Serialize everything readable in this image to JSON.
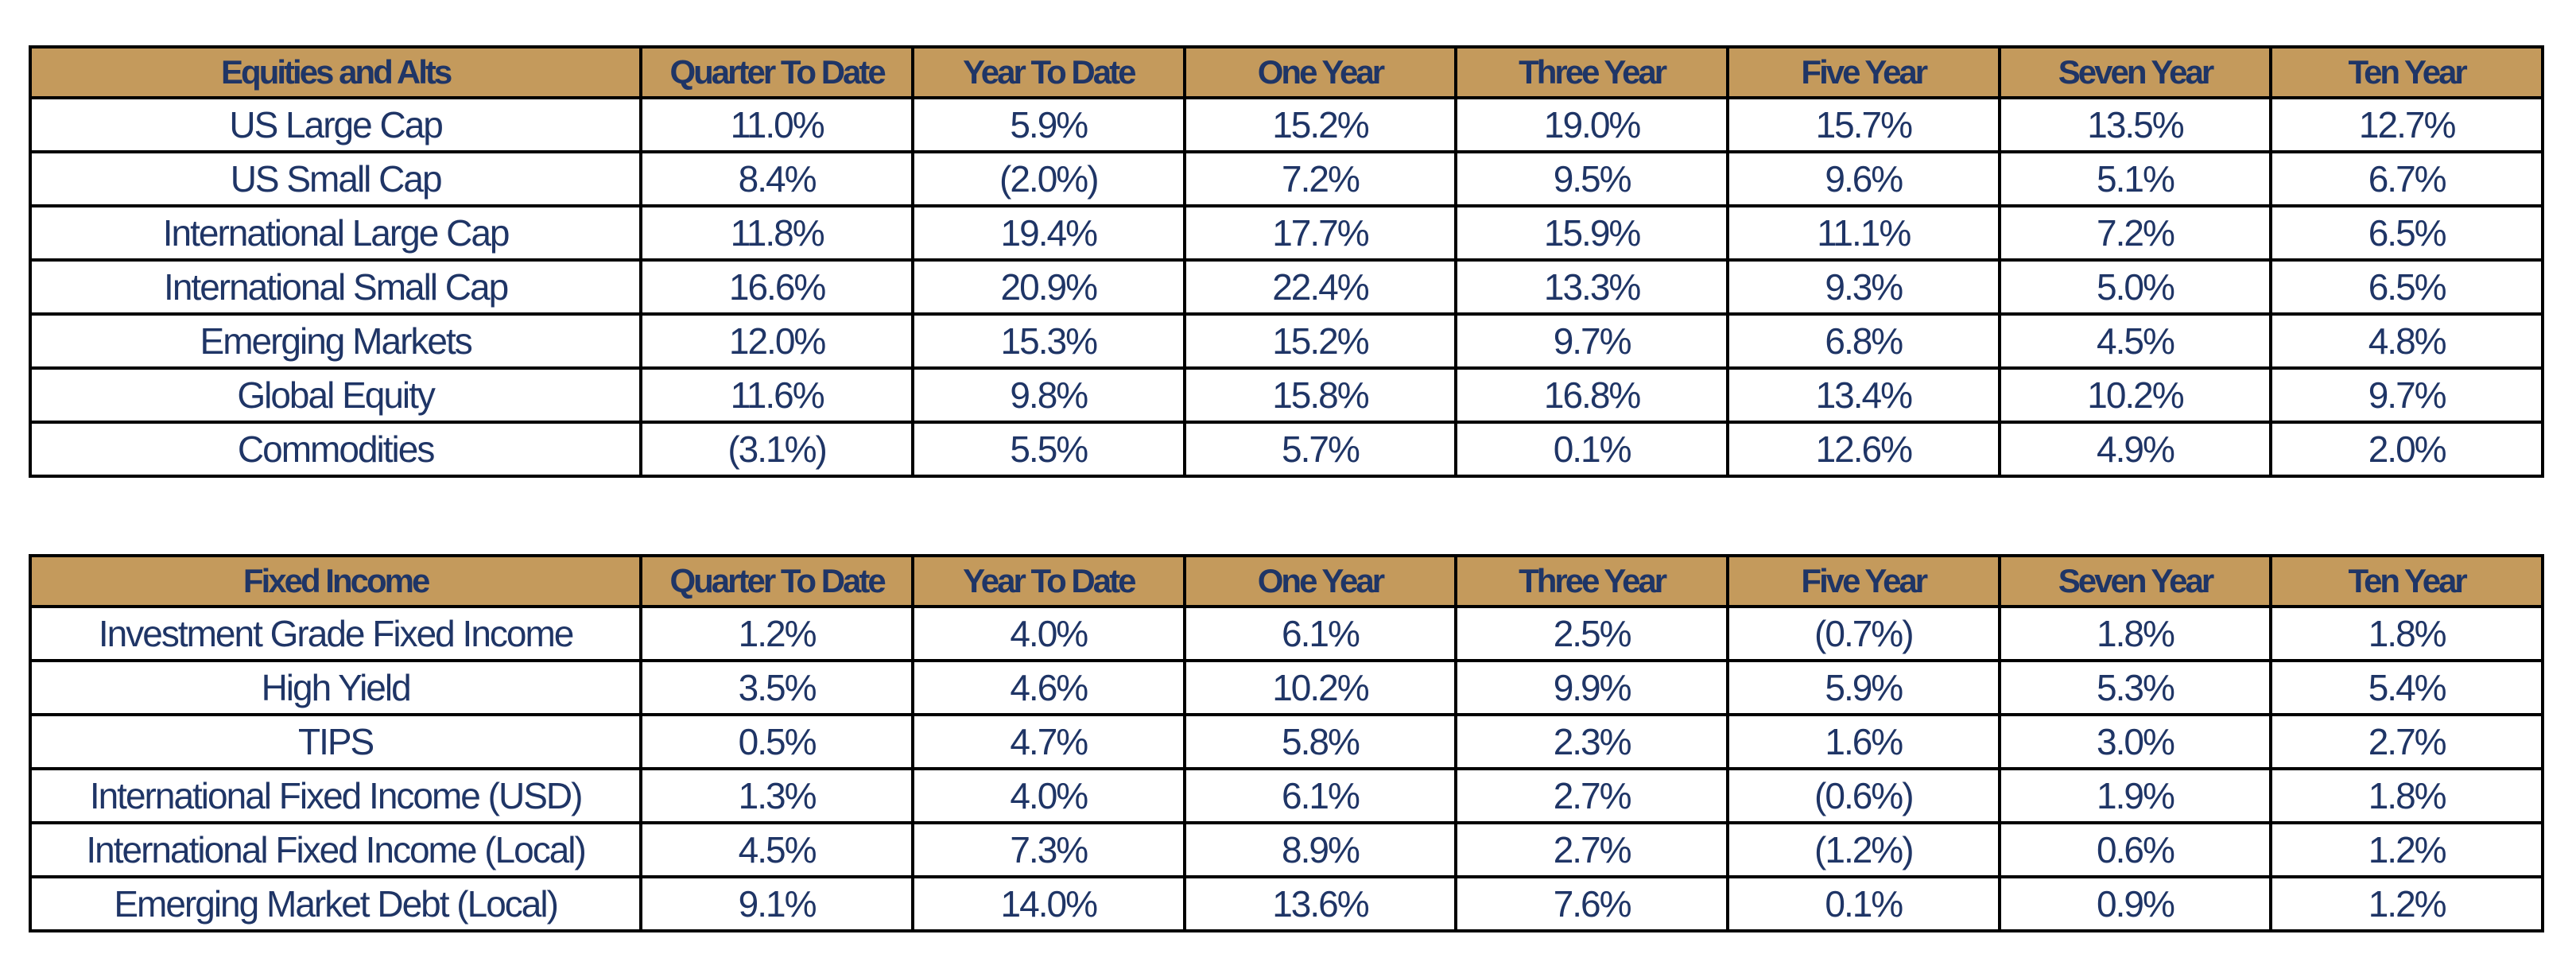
{
  "columns": [
    "Quarter To Date",
    "Year To Date",
    "One Year",
    "Three Year",
    "Five Year",
    "Seven Year",
    "Ten Year"
  ],
  "colors": {
    "header_background": "#c49a5c",
    "text": "#1f3566",
    "border": "#000000"
  },
  "equities": {
    "header": "Equities and Alts",
    "rows": [
      {
        "label": "US Large Cap",
        "values": [
          "11.0%",
          "5.9%",
          "15.2%",
          "19.0%",
          "15.7%",
          "13.5%",
          "12.7%"
        ]
      },
      {
        "label": "US Small Cap",
        "values": [
          "8.4%",
          "(2.0%)",
          "7.2%",
          "9.5%",
          "9.6%",
          "5.1%",
          "6.7%"
        ]
      },
      {
        "label": "International Large Cap",
        "values": [
          "11.8%",
          "19.4%",
          "17.7%",
          "15.9%",
          "11.1%",
          "7.2%",
          "6.5%"
        ]
      },
      {
        "label": "International Small Cap",
        "values": [
          "16.6%",
          "20.9%",
          "22.4%",
          "13.3%",
          "9.3%",
          "5.0%",
          "6.5%"
        ]
      },
      {
        "label": "Emerging Markets",
        "values": [
          "12.0%",
          "15.3%",
          "15.2%",
          "9.7%",
          "6.8%",
          "4.5%",
          "4.8%"
        ]
      },
      {
        "label": "Global Equity",
        "values": [
          "11.6%",
          "9.8%",
          "15.8%",
          "16.8%",
          "13.4%",
          "10.2%",
          "9.7%"
        ]
      },
      {
        "label": "Commodities",
        "values": [
          "(3.1%)",
          "5.5%",
          "5.7%",
          "0.1%",
          "12.6%",
          "4.9%",
          "2.0%"
        ]
      }
    ]
  },
  "fixed_income": {
    "header": "Fixed Income",
    "rows": [
      {
        "label": "Investment Grade Fixed Income",
        "values": [
          "1.2%",
          "4.0%",
          "6.1%",
          "2.5%",
          "(0.7%)",
          "1.8%",
          "1.8%"
        ]
      },
      {
        "label": "High Yield",
        "values": [
          "3.5%",
          "4.6%",
          "10.2%",
          "9.9%",
          "5.9%",
          "5.3%",
          "5.4%"
        ]
      },
      {
        "label": "TIPS",
        "values": [
          "0.5%",
          "4.7%",
          "5.8%",
          "2.3%",
          "1.6%",
          "3.0%",
          "2.7%"
        ]
      },
      {
        "label": "International Fixed Income (USD)",
        "values": [
          "1.3%",
          "4.0%",
          "6.1%",
          "2.7%",
          "(0.6%)",
          "1.9%",
          "1.8%"
        ]
      },
      {
        "label": "International Fixed Income (Local)",
        "values": [
          "4.5%",
          "7.3%",
          "8.9%",
          "2.7%",
          "(1.2%)",
          "0.6%",
          "1.2%"
        ]
      },
      {
        "label": "Emerging Market Debt (Local)",
        "values": [
          "9.1%",
          "14.0%",
          "13.6%",
          "7.6%",
          "0.1%",
          "0.9%",
          "1.2%"
        ]
      }
    ]
  }
}
